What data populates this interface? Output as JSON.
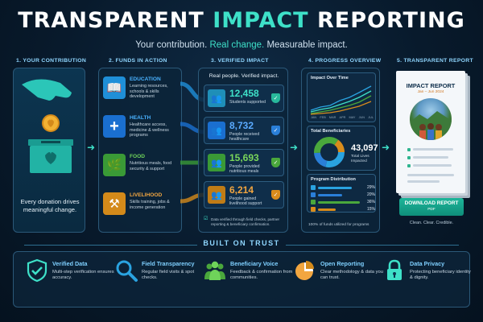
{
  "header": {
    "title_a": "TRANSPARENT ",
    "title_b": "IMPACT",
    "title_c": " REPORTING",
    "sub_a": "Your contribution. ",
    "sub_b": "Real change.",
    "sub_c": " Measurable impact."
  },
  "columns": [
    "1. YOUR CONTRIBUTION",
    "2. FUNDS IN ACTION",
    "3. VERIFIED IMPACT",
    "4. PROGRESS OVERVIEW",
    "5. TRANSPARENT REPORT"
  ],
  "donation": {
    "text": "Every donation drives meaningful change.",
    "icon": "coin-donation-box-icon"
  },
  "funds": [
    {
      "name": "EDUCATION",
      "desc": "Learning resources, schools & skills development",
      "icon": "book-icon",
      "color": "#1f8fd8"
    },
    {
      "name": "HEALTH",
      "desc": "Healthcare access, medicine & wellness programs",
      "icon": "medical-cross-icon",
      "color": "#1a6fd0"
    },
    {
      "name": "FOOD",
      "desc": "Nutritious meals, food security & support",
      "icon": "leaf-plate-icon",
      "color": "#3a9a36"
    },
    {
      "name": "LIVELIHOOD",
      "desc": "Skills training, jobs & income generation",
      "icon": "tools-icon",
      "color": "#d48a1a"
    }
  ],
  "impact": {
    "heading": "Real people. Verified impact.",
    "stats": [
      {
        "value": "12,458",
        "label": "Students supported",
        "color": "#28b89c"
      },
      {
        "value": "8,732",
        "label": "People received healthcare",
        "color": "#2a7fd8"
      },
      {
        "value": "15,693",
        "label": "People provided nutritious meals",
        "color": "#4aa83c"
      },
      {
        "value": "6,214",
        "label": "People gained livelihood support",
        "color": "#d98c1c"
      }
    ],
    "note": "Data verified through field checks, partner reporting & beneficiary confirmation."
  },
  "progress": {
    "over_time_title": "Impact Over Time",
    "months": [
      "JAN",
      "FEB",
      "MAR",
      "APR",
      "MAY",
      "JUN",
      "JUL"
    ],
    "beneficiaries_title": "Total Beneficiaries",
    "total": "43,097",
    "total_label": "Total Lives Impacted",
    "distribution_title": "Program Distribution",
    "distribution": [
      {
        "pct": "29%",
        "value": 29,
        "color": "#2aa3e0"
      },
      {
        "pct": "20%",
        "value": 20,
        "color": "#2a7fd8"
      },
      {
        "pct": "36%",
        "value": 36,
        "color": "#4aa83c"
      },
      {
        "pct": "15%",
        "value": 15,
        "color": "#d98c1c"
      }
    ],
    "utilized": "100% of funds utilized for programs"
  },
  "report": {
    "title": "IMPACT REPORT",
    "dates": "Jan – Jun 2024",
    "btn_l1": "DOWNLOAD REPORT",
    "btn_l2": "PDF",
    "tagline": "Clean. Clear. Credible."
  },
  "trust": {
    "title": "BUILT ON TRUST",
    "items": [
      {
        "name": "Verified Data",
        "desc": "Multi-step verification ensures accuracy.",
        "icon": "shield-check-icon"
      },
      {
        "name": "Field Transparency",
        "desc": "Regular field visits & spot checks.",
        "icon": "magnifier-icon"
      },
      {
        "name": "Beneficiary Voice",
        "desc": "Feedback & confirmation from communities.",
        "icon": "people-group-icon"
      },
      {
        "name": "Open Reporting",
        "desc": "Clear methodology & data you can trust.",
        "icon": "pie-chart-icon"
      },
      {
        "name": "Data Privacy",
        "desc": "Protecting beneficiary identity & dignity.",
        "icon": "padlock-icon"
      }
    ]
  }
}
